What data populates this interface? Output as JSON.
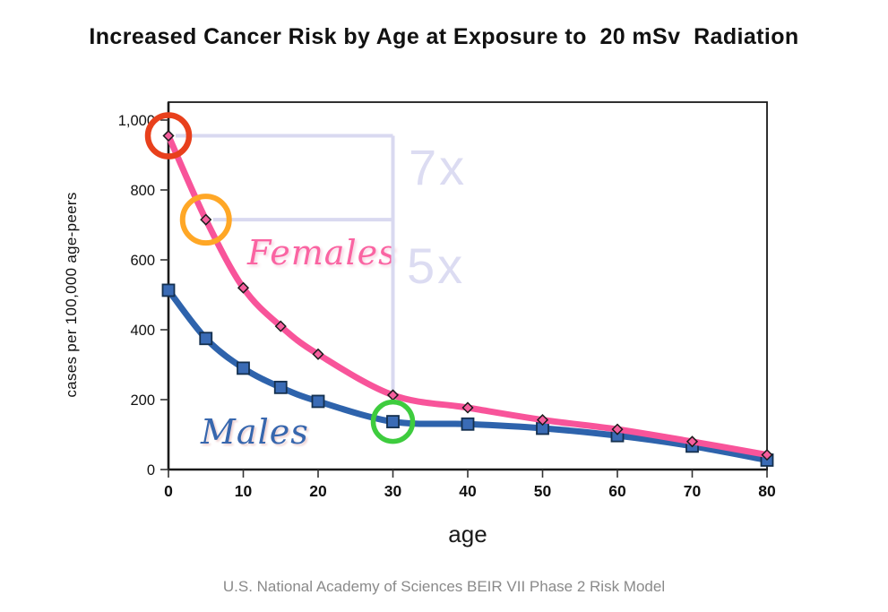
{
  "title": "Increased Cancer Risk by Age at Exposure to  20 mSv  Radiation",
  "footer": "U.S. National Academy of Sciences BEIR VII Phase 2 Risk Model",
  "chart_data": {
    "type": "line",
    "title": "Increased Cancer Risk by Age at Exposure to  20 mSv  Radiation",
    "xlabel": "age",
    "ylabel": "cases per 100,000 age-peers",
    "x": [
      0,
      5,
      10,
      15,
      20,
      30,
      40,
      50,
      60,
      70,
      80
    ],
    "series": [
      {
        "name": "Females",
        "color": "#f8549a",
        "marker": "diamond",
        "marker_fill": "#f55f9d",
        "values": [
          955,
          715,
          520,
          410,
          330,
          213,
          177,
          142,
          115,
          80,
          42
        ]
      },
      {
        "name": "Males",
        "color": "#2e63ac",
        "marker": "square",
        "marker_fill": "#3a6bb5",
        "values": [
          513,
          375,
          290,
          235,
          195,
          137,
          130,
          118,
          97,
          67,
          27
        ]
      }
    ],
    "xlim": [
      0,
      80
    ],
    "ylim": [
      0,
      1000
    ],
    "x_ticks": [
      0,
      10,
      20,
      30,
      40,
      50,
      60,
      70,
      80
    ],
    "y_ticks": [
      0,
      200,
      400,
      600,
      800,
      1000
    ],
    "y_tick_labels": [
      "0",
      "200",
      "400",
      "600",
      "800",
      "1,000"
    ],
    "grid": false,
    "legend_position": "inline-labels",
    "annotations": {
      "ratio_labels": [
        {
          "text": "7x",
          "color": "#dcdcf2"
        },
        {
          "text": "5x",
          "color": "#dcdcf2"
        }
      ],
      "bracket": {
        "series": "Females",
        "compare_x": [
          0,
          5
        ],
        "reference_x": 30,
        "color": "#d9d9f0"
      },
      "highlight_circles": [
        {
          "series": "Females",
          "x": 0,
          "color": "#e8401c",
          "r": 23,
          "stroke_width": 6.5
        },
        {
          "series": "Females",
          "x": 5,
          "color": "#ffa726",
          "r": 26,
          "stroke_width": 6
        },
        {
          "series": "Males",
          "x": 30,
          "color": "#3ecc3e",
          "r": 22,
          "stroke_width": 5.5
        }
      ]
    }
  }
}
